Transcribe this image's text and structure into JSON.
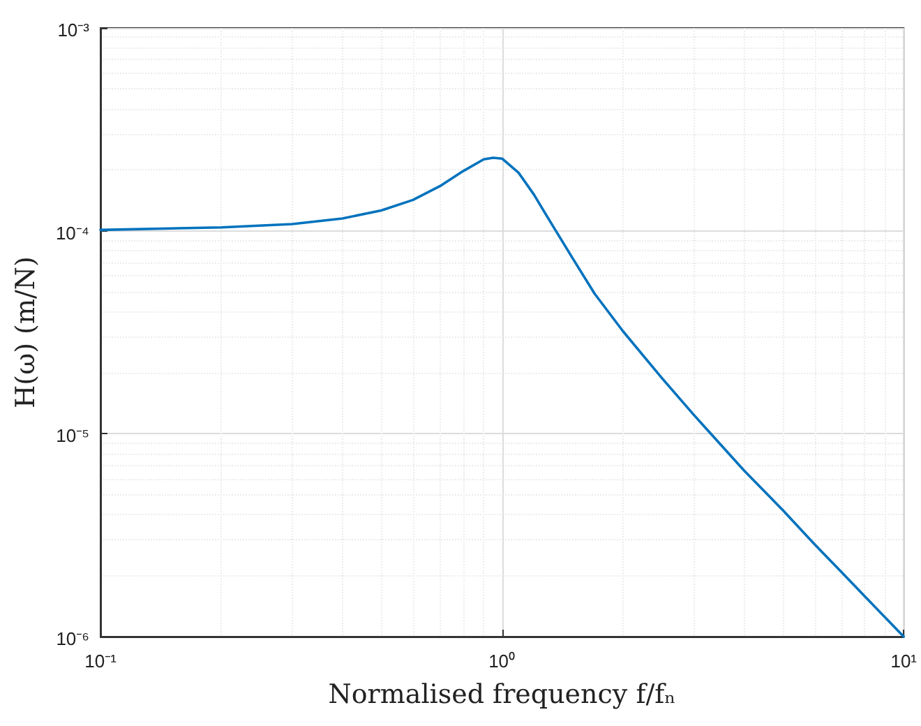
{
  "chart_data": {
    "type": "line",
    "xlabel": "Normalised frequency f/fₙ",
    "ylabel": "H(ω) (m/N)",
    "log": "xy",
    "grid": true,
    "marker": "none",
    "line_style": "solid",
    "xlim": [
      0.1,
      10
    ],
    "ylim": [
      1e-06,
      0.001
    ],
    "xticks": [
      {
        "value": 0.1,
        "label": "10⁻¹"
      },
      {
        "value": 1,
        "label": "10⁰"
      },
      {
        "value": 10,
        "label": "10¹"
      }
    ],
    "yticks": [
      {
        "value": 1e-06,
        "label": "10⁻⁶"
      },
      {
        "value": 1e-05,
        "label": "10⁻⁵"
      },
      {
        "value": 0.0001,
        "label": "10⁻⁴"
      },
      {
        "value": 0.001,
        "label": "10⁻³"
      }
    ],
    "series": [
      {
        "color": "#0072bd",
        "x": [
          0.1,
          0.2,
          0.3,
          0.4,
          0.5,
          0.6,
          0.7,
          0.8,
          0.9,
          0.95,
          1.0,
          1.1,
          1.2,
          1.3,
          1.5,
          1.7,
          2,
          2.5,
          3,
          4,
          5,
          6,
          7,
          8,
          10
        ],
        "values": [
          0.000101,
          0.000104,
          0.000108,
          0.000115,
          0.000126,
          0.000142,
          0.000166,
          0.000197,
          0.000225,
          0.000229,
          0.000227,
          0.000193,
          0.000151,
          0.000116,
          7.3e-05,
          4.9e-05,
          3.2e-05,
          1.88e-05,
          1.24e-05,
          6.6e-06,
          4.2e-06,
          2.85e-06,
          2.08e-06,
          1.58e-06,
          1e-06
        ]
      }
    ]
  }
}
